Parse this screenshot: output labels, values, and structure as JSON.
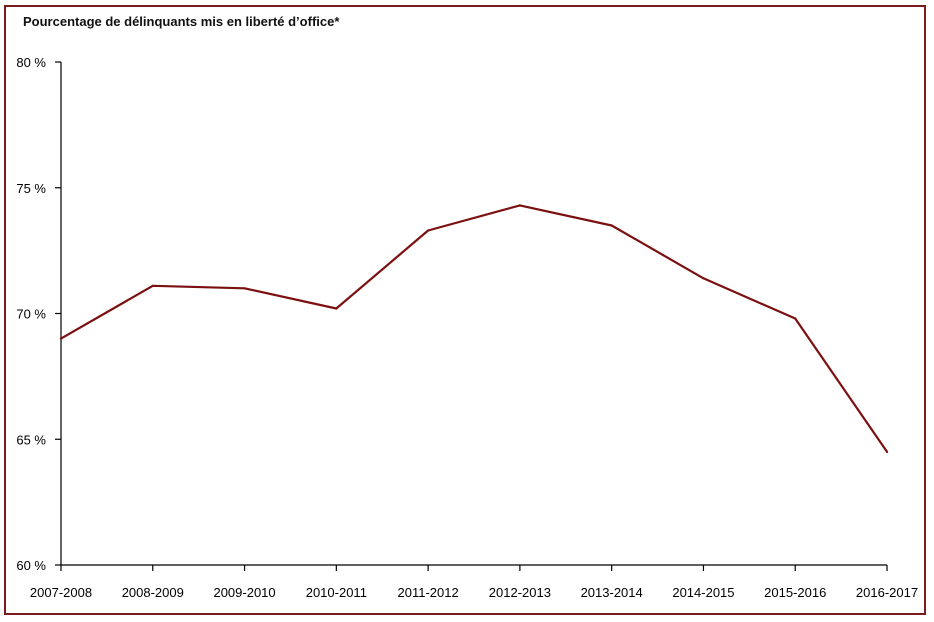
{
  "chart_data": {
    "type": "line",
    "title": "Pourcentage de délinquants mis en liberté d’office*",
    "xlabel": "",
    "ylabel": "",
    "categories": [
      "2007-2008",
      "2008-2009",
      "2009-2010",
      "2010-2011",
      "2011-2012",
      "2012-2013",
      "2013-2014",
      "2014-2015",
      "2015-2016",
      "2016-2017"
    ],
    "series": [
      {
        "values": [
          69.0,
          71.1,
          71.0,
          70.2,
          73.3,
          74.3,
          73.5,
          71.4,
          69.8,
          64.5
        ],
        "color": "#7b1010"
      }
    ],
    "ylim": [
      60,
      80
    ],
    "yticks": [
      60,
      65,
      70,
      75,
      80
    ],
    "ytick_labels": [
      "60 %",
      "65 %",
      "70 %",
      "75 %",
      "80 %"
    ],
    "grid": false,
    "legend": "none",
    "frame_color": "#7b1c1c"
  }
}
